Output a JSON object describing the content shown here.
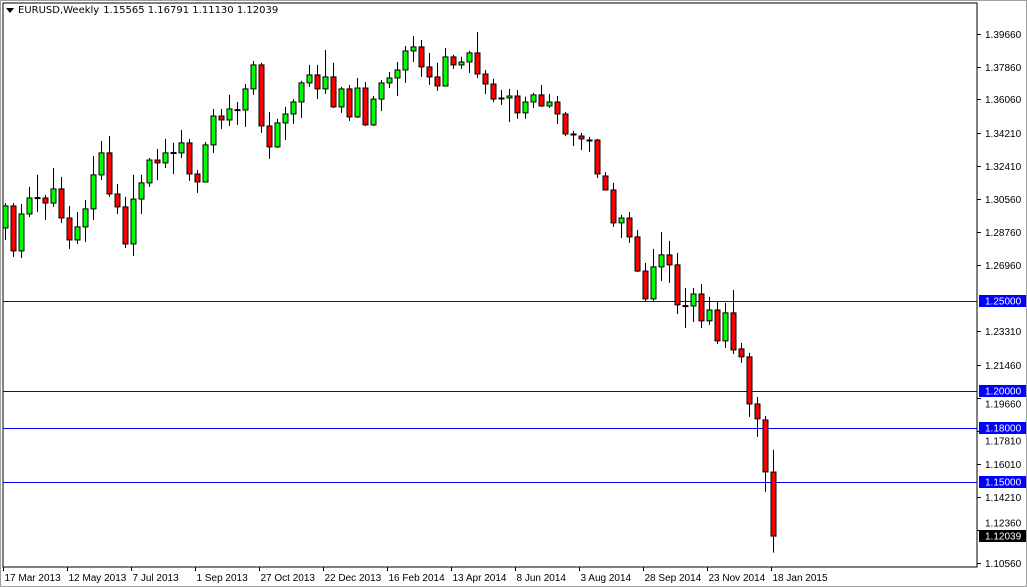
{
  "header": {
    "symbol": "EURUSD,Weekly",
    "ohlc": "1.15565 1.16791 1.11130 1.12039"
  },
  "chart_data": {
    "type": "candlestick",
    "title": "EURUSD,Weekly",
    "ylim": [
      1.1056,
      1.4153
    ],
    "grid": false,
    "colors": {
      "bull": "#00ff00",
      "bear": "#ff0000",
      "outline": "#000000",
      "hline": "#0000ff",
      "price_label_bg": "#000000"
    },
    "y_ticks": [
      "1.39660",
      "1.37860",
      "1.36060",
      "1.34210",
      "1.32410",
      "1.30560",
      "1.28760",
      "1.26960",
      "1.23310",
      "1.21460",
      "1.19660",
      "1.17810",
      "1.16010",
      "1.14210",
      "1.12360",
      "1.10560"
    ],
    "x_ticks": [
      {
        "label": "17 Mar 2013",
        "index": 0
      },
      {
        "label": "12 May 2013",
        "index": 8
      },
      {
        "label": "7 Jul 2013",
        "index": 16
      },
      {
        "label": "1 Sep 2013",
        "index": 24
      },
      {
        "label": "27 Oct 2013",
        "index": 32
      },
      {
        "label": "22 Dec 2013",
        "index": 40
      },
      {
        "label": "16 Feb 2014",
        "index": 48
      },
      {
        "label": "13 Apr 2014",
        "index": 56
      },
      {
        "label": "8 Jun 2014",
        "index": 64
      },
      {
        "label": "3 Aug 2014",
        "index": 72
      },
      {
        "label": "28 Sep 2014",
        "index": 80
      },
      {
        "label": "23 Nov 2014",
        "index": 88
      },
      {
        "label": "18 Jan 2015",
        "index": 96
      }
    ],
    "horizontal_lines": [
      {
        "price": 1.25,
        "label": "1.25000"
      },
      {
        "price": 1.2,
        "label": "1.20000"
      },
      {
        "price": 1.18,
        "label": "1.18000"
      },
      {
        "price": 1.15,
        "label": "1.15000"
      }
    ],
    "current_price": {
      "price": 1.12039,
      "label": "1.12039"
    },
    "ohlc": [
      [
        1.2899,
        1.3036,
        1.2833,
        1.302
      ],
      [
        1.302,
        1.3036,
        1.274,
        1.2773
      ],
      [
        1.2773,
        1.3031,
        1.2734,
        1.2976
      ],
      [
        1.2976,
        1.3125,
        1.296,
        1.3064
      ],
      [
        1.3064,
        1.3191,
        1.2987,
        1.3066
      ],
      [
        1.3064,
        1.3081,
        1.2943,
        1.3036
      ],
      [
        1.3036,
        1.3229,
        1.3015,
        1.3114
      ],
      [
        1.3114,
        1.318,
        1.2927,
        1.2954
      ],
      [
        1.2954,
        1.302,
        1.2784,
        1.2833
      ],
      [
        1.2833,
        1.2987,
        1.2811,
        1.2905
      ],
      [
        1.2905,
        1.3053,
        1.2822,
        1.3004
      ],
      [
        1.3004,
        1.3295,
        1.2943,
        1.3191
      ],
      [
        1.3191,
        1.3378,
        1.3163,
        1.3312
      ],
      [
        1.3312,
        1.3405,
        1.307,
        1.3086
      ],
      [
        1.3086,
        1.3141,
        1.2976,
        1.3015
      ],
      [
        1.3015,
        1.307,
        1.2789,
        1.2811
      ],
      [
        1.2811,
        1.3191,
        1.2745,
        1.3058
      ],
      [
        1.3058,
        1.3191,
        1.2976,
        1.3147
      ],
      [
        1.3147,
        1.3284,
        1.3125,
        1.3273
      ],
      [
        1.3273,
        1.3334,
        1.3163,
        1.3257
      ],
      [
        1.3257,
        1.3389,
        1.3229,
        1.3312
      ],
      [
        1.3312,
        1.3367,
        1.3196,
        1.3314
      ],
      [
        1.3312,
        1.3438,
        1.3284,
        1.3367
      ],
      [
        1.3367,
        1.3389,
        1.3158,
        1.3196
      ],
      [
        1.3196,
        1.3218,
        1.3092,
        1.3152
      ],
      [
        1.3152,
        1.3372,
        1.3152,
        1.3356
      ],
      [
        1.3356,
        1.3554,
        1.3312,
        1.3515
      ],
      [
        1.3515,
        1.3554,
        1.3444,
        1.3493
      ],
      [
        1.3493,
        1.3631,
        1.346,
        1.3554
      ],
      [
        1.3548,
        1.3592,
        1.3466,
        1.355
      ],
      [
        1.3548,
        1.3691,
        1.3455,
        1.3664
      ],
      [
        1.3664,
        1.3818,
        1.3631,
        1.3796
      ],
      [
        1.3796,
        1.3807,
        1.3422,
        1.346
      ],
      [
        1.346,
        1.3537,
        1.3279,
        1.3345
      ],
      [
        1.3345,
        1.3499,
        1.3339,
        1.3477
      ],
      [
        1.3477,
        1.3565,
        1.3383,
        1.3526
      ],
      [
        1.3526,
        1.3608,
        1.3471,
        1.3592
      ],
      [
        1.3592,
        1.3708,
        1.3504,
        1.3697
      ],
      [
        1.3697,
        1.3796,
        1.3675,
        1.3741
      ],
      [
        1.3741,
        1.3796,
        1.3608,
        1.3664
      ],
      [
        1.3664,
        1.3878,
        1.3636,
        1.373
      ],
      [
        1.373,
        1.3807,
        1.3559,
        1.3565
      ],
      [
        1.3565,
        1.3675,
        1.3532,
        1.3664
      ],
      [
        1.3664,
        1.3686,
        1.3488,
        1.351
      ],
      [
        1.351,
        1.3724,
        1.3504,
        1.3669
      ],
      [
        1.3669,
        1.3702,
        1.346,
        1.3466
      ],
      [
        1.3466,
        1.3625,
        1.346,
        1.3608
      ],
      [
        1.3608,
        1.3713,
        1.3542,
        1.3697
      ],
      [
        1.3697,
        1.3757,
        1.3669,
        1.3724
      ],
      [
        1.3724,
        1.3812,
        1.3625,
        1.3768
      ],
      [
        1.3768,
        1.39,
        1.3697,
        1.3873
      ],
      [
        1.3873,
        1.3955,
        1.3812,
        1.3895
      ],
      [
        1.3895,
        1.3933,
        1.373,
        1.3785
      ],
      [
        1.3785,
        1.3862,
        1.3686,
        1.373
      ],
      [
        1.373,
        1.3807,
        1.3653,
        1.368
      ],
      [
        1.368,
        1.3889,
        1.368,
        1.384
      ],
      [
        1.384,
        1.3851,
        1.3774,
        1.3796
      ],
      [
        1.3796,
        1.384,
        1.3774,
        1.3812
      ],
      [
        1.3812,
        1.3873,
        1.3752,
        1.3862
      ],
      [
        1.3862,
        1.3977,
        1.3724,
        1.3746
      ],
      [
        1.3746,
        1.3768,
        1.3636,
        1.3691
      ],
      [
        1.3691,
        1.3719,
        1.3592,
        1.3608
      ],
      [
        1.3614,
        1.3658,
        1.3576,
        1.3612
      ],
      [
        1.3614,
        1.3664,
        1.3482,
        1.3625
      ],
      [
        1.3625,
        1.3658,
        1.3499,
        1.3532
      ],
      [
        1.3532,
        1.362,
        1.3499,
        1.3592
      ],
      [
        1.3592,
        1.3642,
        1.3559,
        1.3631
      ],
      [
        1.3631,
        1.3686,
        1.3565,
        1.357
      ],
      [
        1.357,
        1.3636,
        1.3559,
        1.3592
      ],
      [
        1.3592,
        1.3625,
        1.3471,
        1.3526
      ],
      [
        1.3526,
        1.3537,
        1.3405,
        1.3416
      ],
      [
        1.3416,
        1.3433,
        1.335,
        1.3414
      ],
      [
        1.3405,
        1.3422,
        1.3328,
        1.3389
      ],
      [
        1.3383,
        1.34,
        1.3317,
        1.3381
      ],
      [
        1.3383,
        1.3389,
        1.3174,
        1.3196
      ],
      [
        1.3185,
        1.3207,
        1.3105,
        1.3108
      ],
      [
        1.3108,
        1.3147,
        1.2905,
        1.2927
      ],
      [
        1.2927,
        1.2971,
        1.2844,
        1.2954
      ],
      [
        1.2954,
        1.2987,
        1.2817,
        1.285
      ],
      [
        1.285,
        1.2888,
        1.2657,
        1.2662
      ],
      [
        1.2662,
        1.2706,
        1.2492,
        1.2509
      ],
      [
        1.2509,
        1.2784,
        1.2498,
        1.2685
      ],
      [
        1.2685,
        1.2877,
        1.2608,
        1.2751
      ],
      [
        1.2751,
        1.2828,
        1.2597,
        1.2696
      ],
      [
        1.2696,
        1.2762,
        1.2426,
        1.2476
      ],
      [
        1.247,
        1.2569,
        1.2349,
        1.2472
      ],
      [
        1.247,
        1.2569,
        1.2382,
        1.2536
      ],
      [
        1.2536,
        1.2591,
        1.2349,
        1.2388
      ],
      [
        1.2388,
        1.252,
        1.2366,
        1.2448
      ],
      [
        1.2448,
        1.2492,
        1.2261,
        1.2278
      ],
      [
        1.2278,
        1.2486,
        1.2239,
        1.2432
      ],
      [
        1.2432,
        1.2558,
        1.2206,
        1.2228
      ],
      [
        1.2234,
        1.2266,
        1.2157,
        1.219
      ],
      [
        1.219,
        1.2212,
        1.186,
        1.1931
      ],
      [
        1.1931,
        1.197,
        1.175,
        1.1849
      ],
      [
        1.1843,
        1.1865,
        1.1447,
        1.1557
      ],
      [
        1.15565,
        1.16791,
        1.1113,
        1.12039
      ]
    ]
  }
}
